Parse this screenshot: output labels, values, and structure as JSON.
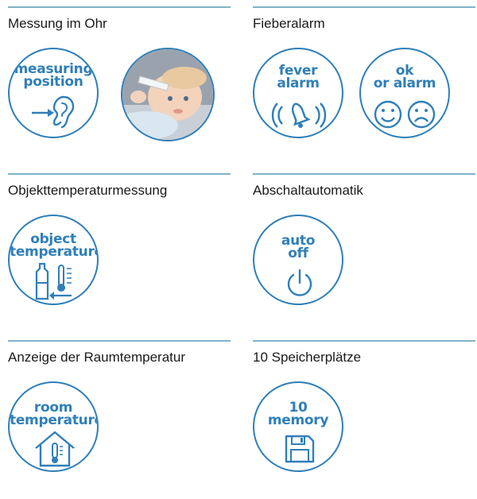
{
  "colors": {
    "accent": "#2f7fb8",
    "rule": "#7fb3c9",
    "heading": "#1a1a1a"
  },
  "features": [
    {
      "heading": "Messung im Ohr",
      "badges": [
        {
          "line1": "measuring",
          "line2": "position",
          "icon": "ear-arrow-icon"
        },
        {
          "photo": "baby-ear-measurement-photo"
        }
      ]
    },
    {
      "heading": "Fieberalarm",
      "badges": [
        {
          "line1": "fever",
          "line2": "alarm",
          "icon": "ringing-bell-icon"
        },
        {
          "line1": "ok",
          "line2": "or alarm",
          "icon": "smiley-faces-icon"
        }
      ]
    },
    {
      "heading": "Objekttemperaturmessung",
      "badges": [
        {
          "line1": "object",
          "line2": "temperature",
          "icon": "bottle-thermometer-icon"
        }
      ]
    },
    {
      "heading": "Abschaltautomatik",
      "badges": [
        {
          "line1": "auto",
          "line2": "off",
          "icon": "power-icon"
        }
      ]
    },
    {
      "heading": "Anzeige der Raumtemperatur",
      "badges": [
        {
          "line1": "room",
          "line2": "temperature",
          "icon": "house-thermometer-icon"
        }
      ]
    },
    {
      "heading": "10 Speicherplätze",
      "badges": [
        {
          "line1": "10",
          "line2": "memory",
          "icon": "floppy-disk-icon"
        }
      ]
    }
  ]
}
